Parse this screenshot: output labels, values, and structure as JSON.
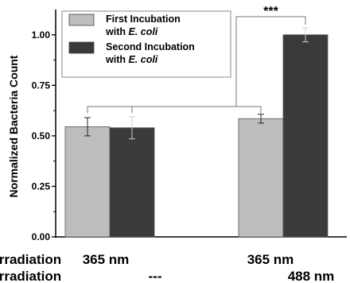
{
  "chart_data": {
    "type": "bar",
    "groups": [
      {
        "conditions": [
          "365 nm",
          "---"
        ],
        "bars": [
          {
            "series": "First Incubation",
            "value": 0.545,
            "error": 0.045
          },
          {
            "series": "Second Incubation",
            "value": 0.54,
            "error": 0.055
          }
        ]
      },
      {
        "conditions": [
          "365 nm",
          "488 nm"
        ],
        "bars": [
          {
            "series": "First Incubation",
            "value": 0.585,
            "error": 0.022
          },
          {
            "series": "Second Incubation",
            "value": 1.0,
            "error": 0.035
          }
        ]
      }
    ],
    "series": [
      {
        "name": "First Incubation",
        "name_suffix": "with ",
        "name_italic": "E. coli",
        "color": "#bdbdbd"
      },
      {
        "name": "Second Incubation",
        "name_suffix": "with ",
        "name_italic": "E. coli",
        "color": "#3a3a3a"
      }
    ],
    "condition_rows": [
      "Irradiation",
      "Irradiation"
    ],
    "ylabel": "Normalized Bacteria Count",
    "yticks": [
      0.0,
      0.25,
      0.5,
      0.75,
      1.0
    ],
    "ytick_labels": [
      "0.00",
      "0.25",
      "0.50",
      "0.75",
      "1.00"
    ],
    "ylim": [
      0,
      1.125
    ],
    "significance": "***",
    "legend_position": "top-left"
  }
}
